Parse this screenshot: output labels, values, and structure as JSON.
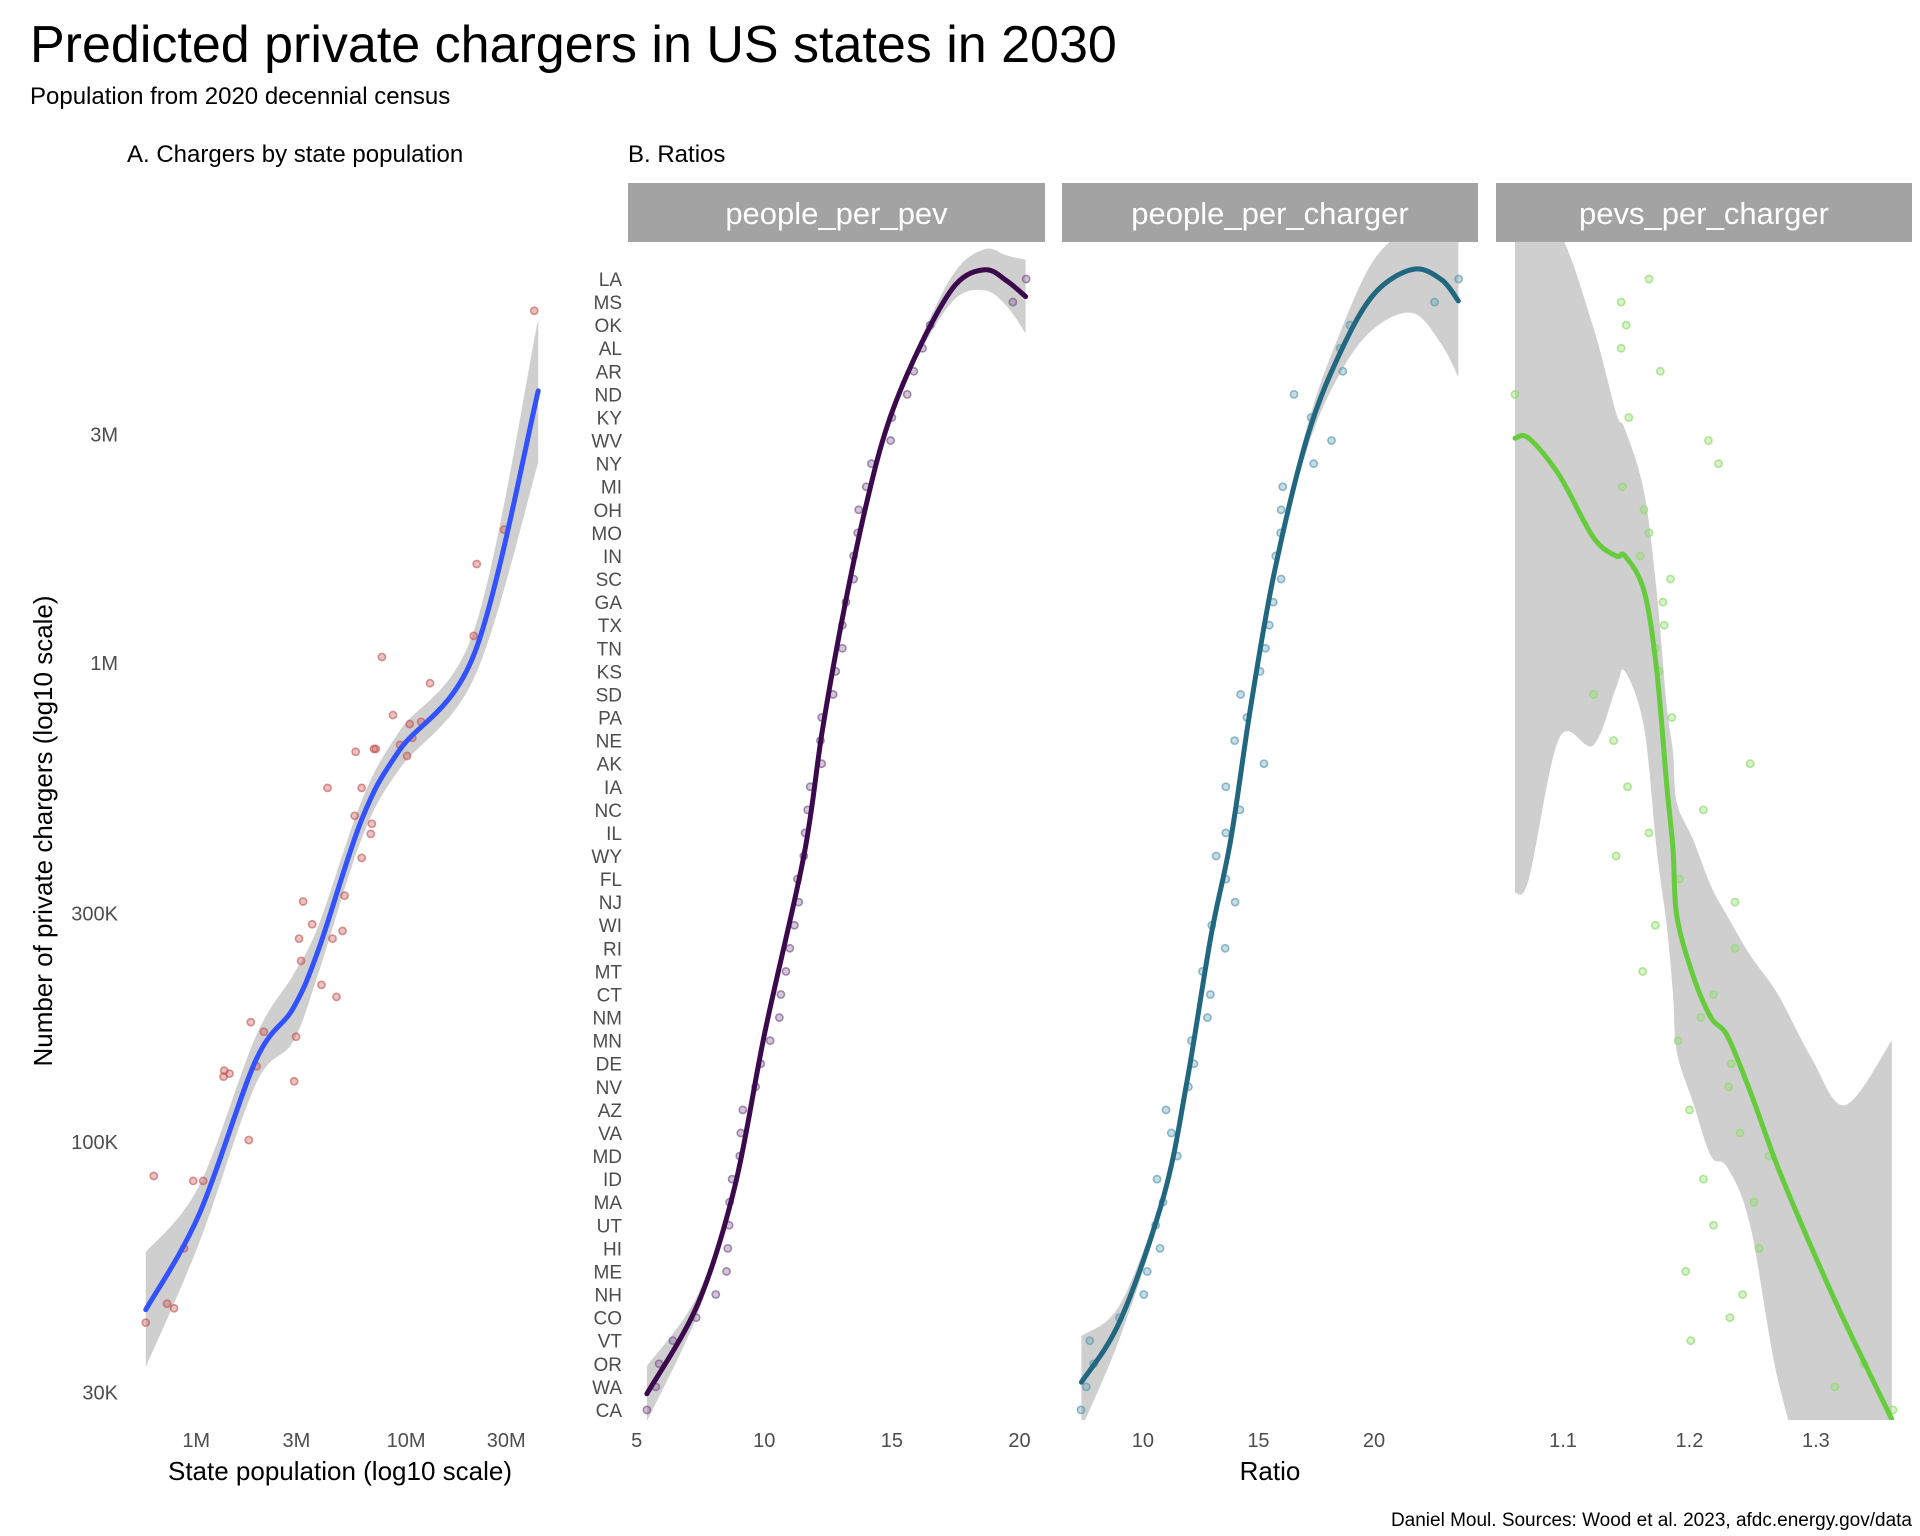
{
  "title": "Predicted private chargers in US states in 2030",
  "subtitle": "Population from 2020 decennial census",
  "caption": "Daniel Moul. Sources: Wood et al. 2023, afdc.energy.gov/data",
  "colors": {
    "panel_a_points": "#c0504d",
    "panel_a_line": "#3352ff",
    "ribbon": "#cccccc",
    "strip": "#a3a3a3",
    "people_per_pev": "#3b0a4c",
    "people_per_charger": "#21677f",
    "pevs_per_charger": "#66cc3d",
    "people_per_pev_points": "#7d5b8e",
    "people_per_charger_points": "#5e9cb2",
    "pevs_per_charger_points": "#8edc6c"
  },
  "chart_data": [
    {
      "type": "scatter",
      "title": "A. Chargers by state population",
      "xlabel": "State population (log10 scale)",
      "ylabel": "Number of private chargers (log10 scale)",
      "x_scale": "log10",
      "y_scale": "log10",
      "xlim": [
        468000,
        50100000
      ],
      "ylim": [
        26300,
        7570000
      ],
      "x_ticks": [
        {
          "value": 1000000,
          "label": "1M"
        },
        {
          "value": 3000000,
          "label": "3M"
        },
        {
          "value": 10000000,
          "label": "10M"
        },
        {
          "value": 30000000,
          "label": "30M"
        }
      ],
      "y_ticks": [
        {
          "value": 30000,
          "label": "30K"
        },
        {
          "value": 100000,
          "label": "100K"
        },
        {
          "value": 300000,
          "label": "300K"
        },
        {
          "value": 1000000,
          "label": "1M"
        },
        {
          "value": 3000000,
          "label": "3M"
        }
      ],
      "grid": false,
      "points": [
        [
          40800000,
          5440000
        ],
        [
          29300000,
          1900000
        ],
        [
          21700000,
          1610000
        ],
        [
          21000000,
          1140000
        ],
        [
          13000000,
          908000
        ],
        [
          7670000,
          1030000
        ],
        [
          11800000,
          754000
        ],
        [
          10700000,
          698000
        ],
        [
          10400000,
          746000
        ],
        [
          10100000,
          640000
        ],
        [
          9350000,
          675000
        ],
        [
          8660000,
          779000
        ],
        [
          7170000,
          662000
        ],
        [
          7020000,
          662000
        ],
        [
          5750000,
          653000
        ],
        [
          6140000,
          549000
        ],
        [
          4220000,
          549000
        ],
        [
          5690000,
          480000
        ],
        [
          6870000,
          462000
        ],
        [
          6790000,
          440000
        ],
        [
          6140000,
          392000
        ],
        [
          5090000,
          327000
        ],
        [
          3230000,
          318000
        ],
        [
          3570000,
          285000
        ],
        [
          3090000,
          266000
        ],
        [
          4460000,
          266000
        ],
        [
          4980000,
          276000
        ],
        [
          3160000,
          239000
        ],
        [
          3950000,
          213000
        ],
        [
          4660000,
          201000
        ],
        [
          1820000,
          178000
        ],
        [
          2100000,
          170000
        ],
        [
          2990000,
          166000
        ],
        [
          1940000,
          144000
        ],
        [
          1360000,
          141000
        ],
        [
          1440000,
          139000
        ],
        [
          1350000,
          137000
        ],
        [
          2930000,
          134000
        ],
        [
          1780000,
          101000
        ],
        [
          628000,
          85000
        ],
        [
          968000,
          83000
        ],
        [
          1080000,
          83000
        ],
        [
          875000,
          60000
        ],
        [
          726000,
          46000
        ],
        [
          784000,
          45000
        ],
        [
          575000,
          42000
        ]
      ],
      "smooth": {
        "x": [
          575000,
          1030000,
          1920000,
          2890000,
          3820000,
          6140000,
          9250000,
          21200000,
          42600000
        ],
        "y": [
          44700,
          70500,
          148000,
          190000,
          252000,
          471000,
          656000,
          1050000,
          3700000
        ],
        "lower": [
          33900,
          61400,
          132000,
          162000,
          225000,
          430000,
          599000,
          936000,
          2620000
        ],
        "upper": [
          58900,
          80900,
          166000,
          223000,
          283000,
          516000,
          719000,
          1180000,
          5230000
        ]
      }
    },
    {
      "type": "scatter",
      "title": "B. Ratios",
      "xlabel": "Ratio",
      "ylabel": "",
      "states": [
        "LA",
        "MS",
        "OK",
        "AL",
        "AR",
        "ND",
        "KY",
        "WV",
        "NY",
        "MI",
        "OH",
        "MO",
        "IN",
        "SC",
        "GA",
        "TX",
        "TN",
        "KS",
        "SD",
        "PA",
        "NE",
        "AK",
        "IA",
        "NC",
        "IL",
        "WY",
        "FL",
        "NJ",
        "WI",
        "RI",
        "MT",
        "CT",
        "NM",
        "MN",
        "DE",
        "NV",
        "AZ",
        "VA",
        "MD",
        "ID",
        "MA",
        "UT",
        "HI",
        "ME",
        "NH",
        "CO",
        "VT",
        "OR",
        "WA",
        "CA"
      ],
      "facets": [
        {
          "name": "people_per_pev",
          "xlim": [
            4.66,
            21.0
          ],
          "x_ticks": [
            5,
            10,
            15,
            20
          ],
          "values": [
            20.26,
            19.74,
            16.5,
            16.2,
            15.86,
            15.6,
            15.0,
            14.95,
            14.2,
            14.0,
            13.7,
            13.66,
            13.5,
            13.5,
            13.2,
            13.06,
            13.06,
            12.8,
            12.7,
            12.25,
            12.2,
            12.25,
            11.8,
            11.7,
            11.6,
            11.55,
            11.3,
            11.35,
            11.18,
            11.0,
            10.85,
            10.65,
            10.59,
            10.23,
            9.86,
            9.66,
            9.16,
            9.08,
            9.04,
            8.74,
            8.64,
            8.62,
            8.57,
            8.52,
            8.1,
            7.33,
            6.42,
            5.88,
            5.75,
            5.4
          ],
          "smooth": {
            "x": [
              5.4,
              7.4,
              8.85,
              10.03,
              11.55,
              12.27,
              13.06,
              13.99,
              14.9,
              16.2,
              17.5,
              18.66,
              19.5,
              20.24
            ],
            "y": [
              1.7,
              5.6,
              10.7,
              17.4,
              25,
              30.4,
              35.3,
              40.2,
              43.9,
              47.3,
              49.76,
              50.4,
              49.92,
              49.24
            ],
            "lower": [
              0.5,
              5.2,
              10.5,
              17.25,
              24.85,
              30.25,
              35.15,
              40.05,
              43.7,
              47.0,
              49.16,
              49.5,
              48.82,
              47.64
            ],
            "upper": [
              2.9,
              6.0,
              10.9,
              17.55,
              25.15,
              30.55,
              35.45,
              40.35,
              44.1,
              47.6,
              50.36,
              51.3,
              51.02,
              50.84
            ]
          }
        },
        {
          "name": "people_per_charger",
          "xlim": [
            6.5,
            24.5
          ],
          "x_ticks": [
            10,
            15,
            20
          ],
          "values": [
            23.66,
            22.62,
            18.96,
            18.54,
            18.65,
            16.54,
            17.28,
            18.16,
            17.39,
            16.05,
            15.98,
            15.96,
            15.75,
            15.98,
            15.64,
            15.47,
            15.3,
            15.07,
            14.23,
            14.5,
            13.97,
            15.24,
            13.59,
            14.2,
            13.59,
            13.17,
            13.59,
            13.99,
            12.98,
            13.56,
            12.58,
            12.92,
            12.79,
            12.1,
            12.21,
            11.97,
            11.0,
            11.23,
            11.49,
            10.61,
            10.87,
            10.55,
            10.74,
            10.19,
            10.04,
            8.99,
            7.7,
            7.87,
            7.55,
            7.32
          ],
          "smooth": {
            "x": [
              7.34,
              9.03,
              10.91,
              11.92,
              12.94,
              13.8,
              14.67,
              15.69,
              17.13,
              18.58,
              20.03,
              21.69,
              22.92,
              23.65
            ],
            "y": [
              2.2,
              4.9,
              10.3,
              15.3,
              21.5,
              25.7,
              31.5,
              37.3,
              43.2,
              46.9,
              49.38,
              50.42,
              49.97,
              49.05
            ],
            "lower": [
              0.2,
              4.2,
              10.0,
              15.1,
              21.3,
              25.5,
              31.3,
              37.05,
              42.7,
              46.0,
              47.88,
              48.52,
              47.17,
              45.75
            ],
            "upper": [
              4.2,
              5.6,
              10.6,
              15.5,
              21.7,
              25.9,
              31.7,
              37.55,
              43.7,
              47.8,
              50.88,
              52.32,
              52.77,
              52.35
            ]
          }
        },
        {
          "name": "pevs_per_charger",
          "xlim": [
            1.047,
            1.376
          ],
          "x_ticks": [
            1.1,
            1.2,
            1.3
          ],
          "values": [
            1.168,
            1.146,
            1.15,
            1.146,
            1.177,
            1.062,
            1.152,
            1.215,
            1.223,
            1.147,
            1.164,
            1.168,
            1.161,
            1.185,
            1.179,
            1.18,
            1.173,
            1.176,
            1.124,
            1.186,
            1.14,
            1.248,
            1.151,
            1.211,
            1.168,
            1.142,
            1.192,
            1.236,
            1.173,
            1.236,
            1.163,
            1.219,
            1.209,
            1.191,
            1.233,
            1.231,
            1.2,
            1.24,
            1.263,
            1.211,
            1.251,
            1.219,
            1.255,
            1.197,
            1.242,
            1.232,
            1.201,
            1.338,
            1.315,
            1.361
          ],
          "smooth": {
            "x": [
              1.062,
              1.073,
              1.097,
              1.124,
              1.142,
              1.149,
              1.164,
              1.174,
              1.182,
              1.187,
              1.19,
              1.203,
              1.217,
              1.23,
              1.248,
              1.27,
              1.296,
              1.323,
              1.36
            ],
            "y": [
              43.1,
              43.1,
              41.5,
              38.8,
              38,
              38,
              36.5,
              33.1,
              28.1,
              25.3,
              22.4,
              19.8,
              18,
              17.2,
              14.8,
              11.5,
              8.1,
              4.8,
              0.6
            ],
            "lower": [
              23.4,
              24,
              30.1,
              29.8,
              32.3,
              33,
              30.6,
              25.3,
              22,
              19,
              16.5,
              14.3,
              12,
              11.5,
              9,
              2.3,
              -2,
              -2,
              -2
            ],
            "upper": [
              52,
              52,
              52,
              47.9,
              44.2,
              43.5,
              40.8,
              36.5,
              31.5,
              29.5,
              27.3,
              25.7,
              23.7,
              22.4,
              20.7,
              19,
              16.3,
              14.2,
              17
            ]
          }
        }
      ]
    }
  ]
}
